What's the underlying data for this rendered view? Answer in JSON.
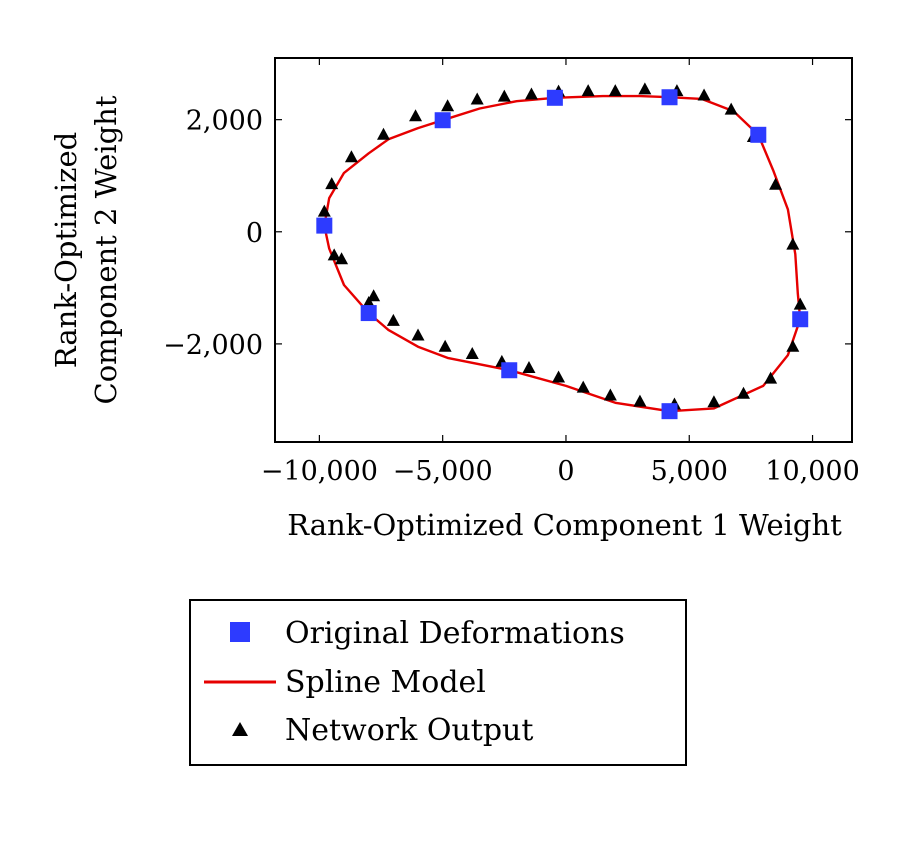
{
  "chart_data": {
    "type": "scatter",
    "xlabel": "Rank-Optimized Component 1 Weight",
    "ylabel_lines": [
      "Rank-Optimized",
      "Component 2 Weight"
    ],
    "xlim": [
      -11800,
      11600
    ],
    "ylim": [
      -3750,
      3100
    ],
    "x_ticks": [
      {
        "value": -10000,
        "label": "−10,000"
      },
      {
        "value": -5000,
        "label": "−5,000"
      },
      {
        "value": 0,
        "label": "0"
      },
      {
        "value": 5000,
        "label": "5,000"
      },
      {
        "value": 10000,
        "label": "10,000"
      }
    ],
    "y_ticks": [
      {
        "value": -2000,
        "label": "−2,000"
      },
      {
        "value": 0,
        "label": "0"
      },
      {
        "value": 2000,
        "label": "2,000"
      }
    ],
    "grid": false,
    "legend_position": "bottom-center",
    "series": [
      {
        "name": "Original Deformations",
        "marker": "square",
        "color": "#2d3bff",
        "points": [
          [
            -9800,
            110
          ],
          [
            -5000,
            1990
          ],
          [
            -450,
            2390
          ],
          [
            4200,
            2400
          ],
          [
            7800,
            1730
          ],
          [
            9500,
            -1560
          ],
          [
            4200,
            -3200
          ],
          [
            -2300,
            -2470
          ],
          [
            -8000,
            -1450
          ]
        ]
      },
      {
        "name": "Spline Model",
        "marker": "line",
        "color": "#e60000",
        "points": [
          [
            -9800,
            110
          ],
          [
            -9600,
            600
          ],
          [
            -9000,
            1050
          ],
          [
            -8000,
            1400
          ],
          [
            -7200,
            1650
          ],
          [
            -6000,
            1850
          ],
          [
            -5000,
            1990
          ],
          [
            -3500,
            2200
          ],
          [
            -2000,
            2330
          ],
          [
            -450,
            2390
          ],
          [
            1500,
            2420
          ],
          [
            3000,
            2420
          ],
          [
            4200,
            2400
          ],
          [
            5500,
            2370
          ],
          [
            6800,
            2150
          ],
          [
            7800,
            1730
          ],
          [
            8400,
            1100
          ],
          [
            9000,
            400
          ],
          [
            9300,
            -400
          ],
          [
            9400,
            -1100
          ],
          [
            9500,
            -1560
          ],
          [
            9000,
            -2200
          ],
          [
            8000,
            -2750
          ],
          [
            6000,
            -3150
          ],
          [
            4200,
            -3200
          ],
          [
            2000,
            -3050
          ],
          [
            0,
            -2750
          ],
          [
            -2300,
            -2470
          ],
          [
            -4800,
            -2250
          ],
          [
            -6000,
            -2050
          ],
          [
            -7200,
            -1750
          ],
          [
            -8000,
            -1450
          ],
          [
            -9000,
            -950
          ],
          [
            -9600,
            -300
          ],
          [
            -9800,
            110
          ]
        ]
      },
      {
        "name": "Network Output",
        "marker": "triangle",
        "color": "#000000",
        "points": [
          [
            -9800,
            360
          ],
          [
            -9500,
            850
          ],
          [
            -8700,
            1330
          ],
          [
            -7400,
            1730
          ],
          [
            -6100,
            2060
          ],
          [
            -4800,
            2240
          ],
          [
            -3600,
            2360
          ],
          [
            -2500,
            2410
          ],
          [
            -1400,
            2450
          ],
          [
            -300,
            2500
          ],
          [
            900,
            2510
          ],
          [
            2000,
            2510
          ],
          [
            3200,
            2540
          ],
          [
            4500,
            2510
          ],
          [
            5600,
            2430
          ],
          [
            6700,
            2180
          ],
          [
            7600,
            1690
          ],
          [
            8500,
            840
          ],
          [
            9200,
            -230
          ],
          [
            9500,
            -1300
          ],
          [
            9200,
            -2050
          ],
          [
            8300,
            -2620
          ],
          [
            7200,
            -2890
          ],
          [
            6000,
            -3040
          ],
          [
            4400,
            -3080
          ],
          [
            3000,
            -3030
          ],
          [
            1800,
            -2920
          ],
          [
            700,
            -2780
          ],
          [
            -300,
            -2600
          ],
          [
            -1500,
            -2430
          ],
          [
            -2600,
            -2320
          ],
          [
            -3800,
            -2180
          ],
          [
            -4900,
            -2050
          ],
          [
            -6000,
            -1850
          ],
          [
            -7000,
            -1590
          ],
          [
            -7800,
            -1150
          ],
          [
            -8000,
            -1270
          ],
          [
            -9100,
            -490
          ],
          [
            -9400,
            -420
          ]
        ]
      }
    ]
  }
}
